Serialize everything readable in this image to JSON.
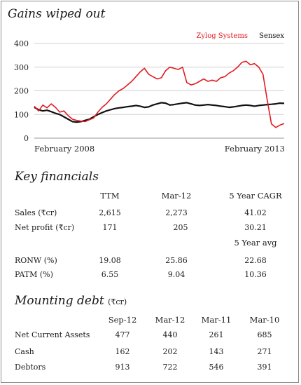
{
  "chart_data": {
    "type": "line",
    "title": "Gains wiped out",
    "ylim": [
      0,
      400
    ],
    "yticks": [
      "0",
      "100",
      "200",
      "300",
      "400"
    ],
    "x_labels": [
      "February 2008",
      "February 2013"
    ],
    "legend_position": "top-right",
    "grid": "horizontal",
    "series": [
      {
        "name": "Zylog Systems",
        "color": "#e11b22",
        "values": [
          135,
          115,
          140,
          128,
          145,
          130,
          110,
          115,
          95,
          80,
          75,
          72,
          70,
          78,
          85,
          110,
          130,
          145,
          165,
          185,
          200,
          210,
          225,
          240,
          260,
          280,
          295,
          270,
          260,
          250,
          255,
          285,
          300,
          295,
          290,
          300,
          235,
          225,
          230,
          240,
          250,
          240,
          245,
          240,
          255,
          260,
          275,
          285,
          300,
          320,
          325,
          310,
          315,
          300,
          270,
          160,
          60,
          45,
          55,
          62
        ]
      },
      {
        "name": "Sensex",
        "color": "#111111",
        "values": [
          130,
          120,
          115,
          118,
          112,
          105,
          100,
          90,
          80,
          70,
          68,
          70,
          75,
          80,
          90,
          100,
          108,
          115,
          120,
          125,
          128,
          130,
          133,
          135,
          138,
          135,
          130,
          132,
          140,
          145,
          150,
          148,
          140,
          142,
          145,
          148,
          150,
          145,
          140,
          138,
          140,
          142,
          140,
          138,
          135,
          133,
          130,
          132,
          135,
          138,
          140,
          138,
          135,
          138,
          140,
          142,
          143,
          145,
          148,
          147
        ]
      }
    ]
  },
  "key_financials": {
    "title": "Key financials",
    "columns": [
      "TTM",
      "Mar-12",
      "5 Year CAGR"
    ],
    "rows": [
      {
        "label": "Sales (₹cr)",
        "values": [
          "2,615",
          "2,273",
          "41.02"
        ]
      },
      {
        "label": "Net profit (₹cr)",
        "values": [
          "171",
          "205",
          "30.21"
        ]
      }
    ],
    "subheader": "5 Year avg",
    "rows2": [
      {
        "label": "RONW (%)",
        "values": [
          "19.08",
          "25.86",
          "22.68"
        ]
      },
      {
        "label": "PATM (%)",
        "values": [
          "6.55",
          "9.04",
          "10.36"
        ]
      }
    ]
  },
  "mounting_debt": {
    "title": "Mounting debt",
    "unit": "(₹cr)",
    "columns": [
      "Sep-12",
      "Mar-12",
      "Mar-11",
      "Mar-10"
    ],
    "rows": [
      {
        "label": "Net Current Assets",
        "values": [
          "477",
          "440",
          "261",
          "685"
        ]
      },
      {
        "label": "Cash",
        "values": [
          "162",
          "202",
          "143",
          "271"
        ]
      },
      {
        "label": "Debtors",
        "values": [
          "913",
          "722",
          "546",
          "391"
        ]
      }
    ]
  }
}
